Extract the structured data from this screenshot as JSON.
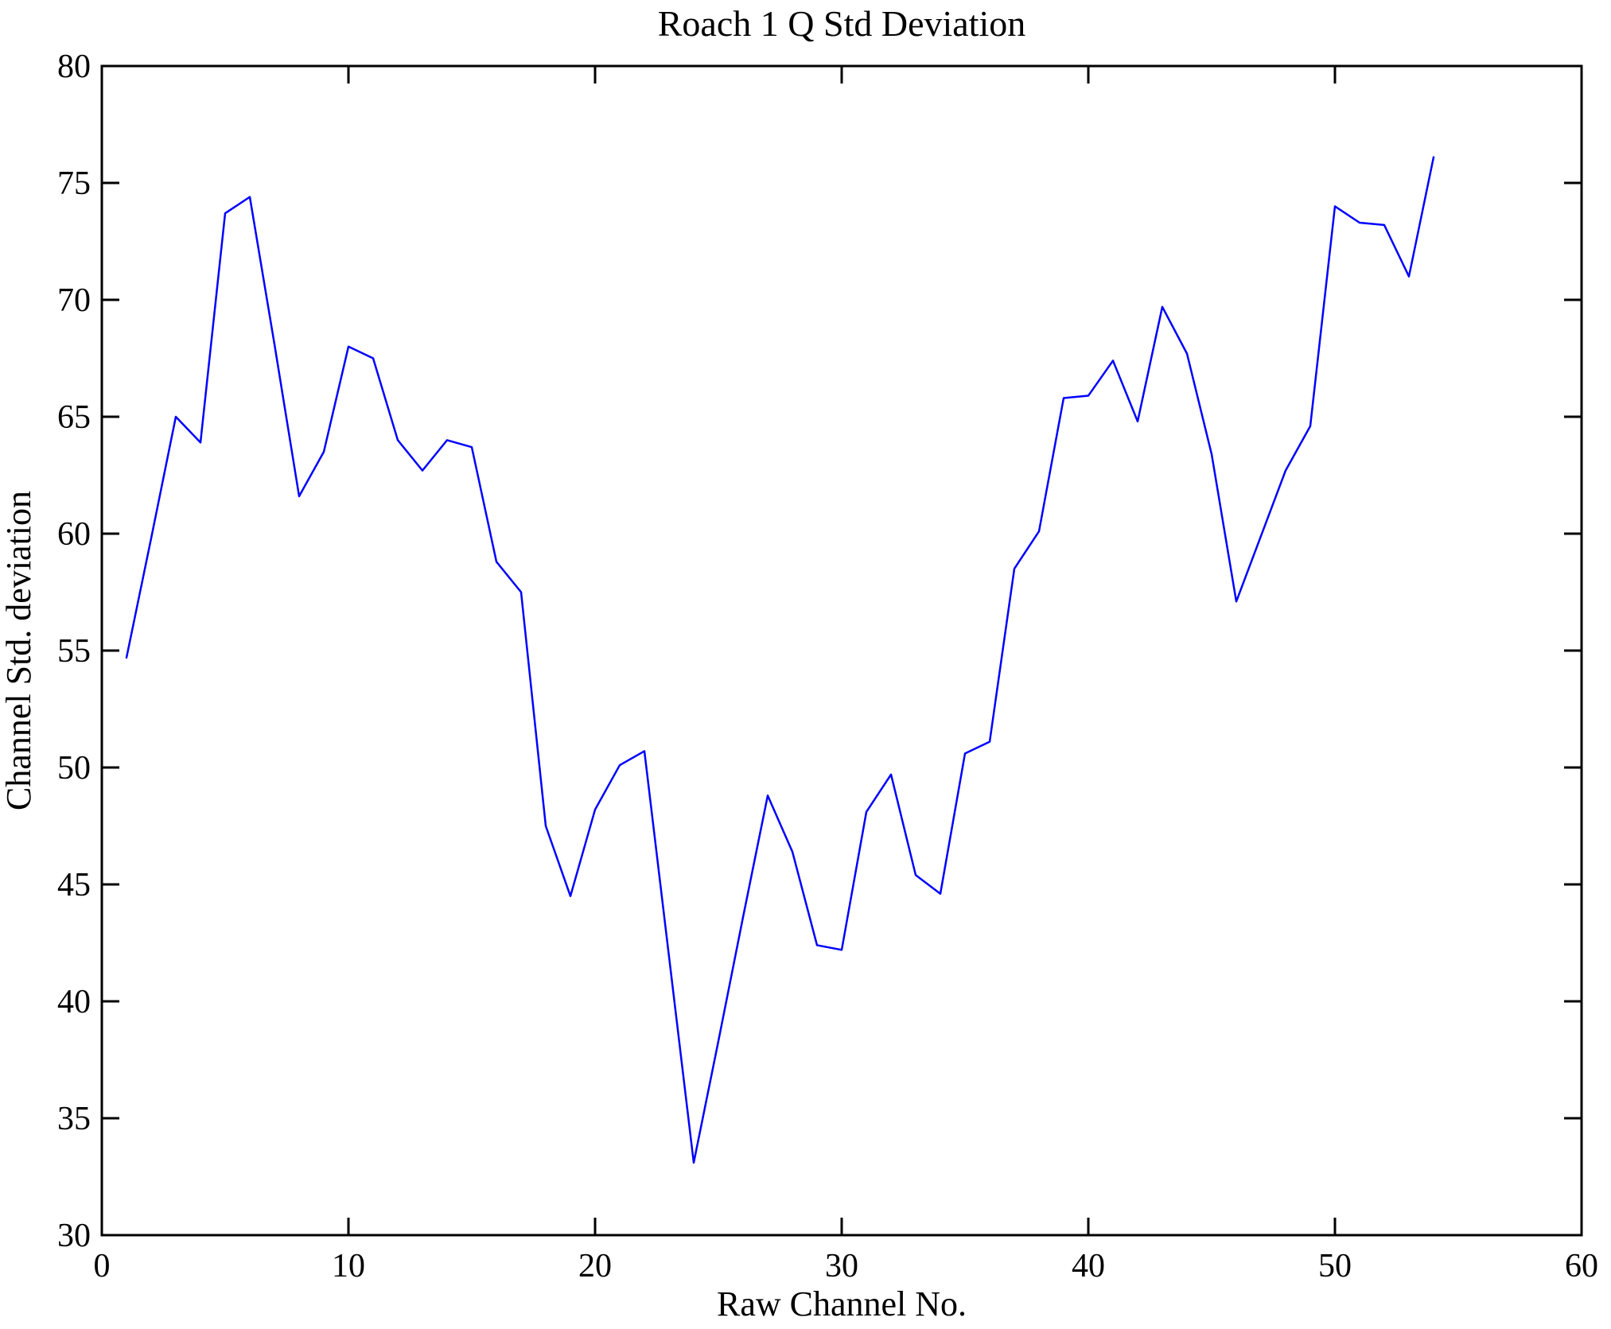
{
  "chart_data": {
    "type": "line",
    "title": "Roach 1 Q Std Deviation",
    "xlabel": "Raw Channel No.",
    "ylabel": "Channel Std. deviation",
    "xlim": [
      0,
      60
    ],
    "ylim": [
      30,
      80
    ],
    "xticks": [
      0,
      10,
      20,
      30,
      40,
      50,
      60
    ],
    "yticks": [
      30,
      35,
      40,
      45,
      50,
      55,
      60,
      65,
      70,
      75,
      80
    ],
    "grid": false,
    "legend_position": "none",
    "line_color": "#0000ff",
    "axis_color": "#000000",
    "background_color": "#ffffff",
    "x": [
      1,
      2,
      3,
      4,
      5,
      6,
      7,
      8,
      9,
      10,
      11,
      12,
      13,
      14,
      15,
      16,
      17,
      18,
      19,
      20,
      21,
      22,
      23,
      24,
      25,
      26,
      27,
      28,
      29,
      30,
      31,
      32,
      33,
      34,
      35,
      36,
      37,
      38,
      39,
      40,
      41,
      42,
      43,
      44,
      45,
      46,
      47,
      48,
      49,
      50,
      51,
      52,
      53,
      54
    ],
    "series": [
      {
        "name": "Channel Std. deviation",
        "values": [
          54.7,
          59.8,
          65.0,
          63.9,
          73.7,
          74.4,
          68.1,
          61.6,
          63.5,
          68.0,
          67.5,
          64.0,
          62.7,
          64.0,
          63.7,
          58.8,
          57.5,
          47.5,
          44.5,
          48.2,
          50.1,
          50.7,
          41.9,
          33.1,
          38.3,
          43.6,
          48.8,
          46.4,
          42.4,
          42.2,
          48.1,
          49.7,
          45.4,
          44.6,
          50.6,
          51.1,
          58.5,
          60.1,
          65.8,
          65.9,
          67.4,
          64.8,
          69.7,
          67.7,
          63.4,
          57.1,
          59.9,
          62.7,
          64.6,
          74.0,
          73.3,
          73.2,
          71.0,
          76.1
        ]
      }
    ]
  }
}
